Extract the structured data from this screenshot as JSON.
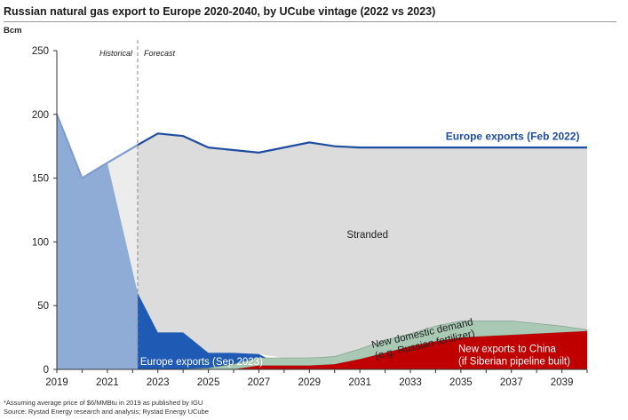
{
  "chart_data": {
    "type": "area",
    "title": "Russian natural gas export to Europe 2020-2040, by UCube vintage (2022 vs 2023)",
    "ylabel": "Bcm",
    "xlabel": "",
    "ylim": [
      0,
      250
    ],
    "yticks": [
      0,
      50,
      100,
      150,
      200,
      250
    ],
    "xlim": [
      2019,
      2040
    ],
    "xticks": [
      "2019",
      "2021",
      "2023",
      "2025",
      "2027",
      "2029",
      "2031",
      "2033",
      "2035",
      "2037",
      "2039"
    ],
    "forecast_start": 2022.2,
    "region_labels": {
      "historical": "Historical",
      "forecast": "Forecast"
    },
    "series": [
      {
        "name": "Europe exports (Feb 2022)",
        "color": "#1f4ea0",
        "x": [
          2019,
          2020,
          2021,
          2022.2,
          2023,
          2024,
          2025,
          2026,
          2027,
          2028,
          2029,
          2030,
          2031,
          2032,
          2033,
          2034,
          2035,
          2036,
          2037,
          2038,
          2039,
          2040
        ],
        "values": [
          200,
          150,
          162,
          176,
          185,
          183,
          174,
          172,
          170,
          174,
          178,
          175,
          174,
          174,
          174,
          174,
          174,
          174,
          174,
          174,
          174,
          174
        ]
      },
      {
        "name": "Europe exports (Sep 2023)",
        "color": "#1f5bb5",
        "historical_color": "#8eacd6",
        "x": [
          2019,
          2020,
          2021,
          2022.2,
          2023,
          2024,
          2025,
          2026,
          2027,
          2028,
          2029,
          2030,
          2031,
          2032,
          2033,
          2034,
          2035,
          2036,
          2037,
          2038,
          2039,
          2040
        ],
        "values": [
          200,
          150,
          162,
          60,
          29,
          29,
          13,
          13,
          12,
          2,
          2,
          1,
          1,
          0,
          0,
          0,
          0,
          0,
          0,
          0,
          0,
          0
        ]
      },
      {
        "name": "New exports to China (if Siberian pipeline built)",
        "color": "#c00000",
        "x": [
          2019,
          2020,
          2021,
          2022.2,
          2023,
          2024,
          2025,
          2026,
          2027,
          2028,
          2029,
          2030,
          2031,
          2032,
          2033,
          2034,
          2035,
          2036,
          2037,
          2038,
          2039,
          2040
        ],
        "values": [
          0,
          0,
          0,
          0,
          0,
          0,
          0,
          0,
          3,
          3,
          3,
          4,
          8,
          13,
          18,
          22,
          25,
          26,
          27,
          28,
          29,
          30
        ]
      },
      {
        "name": "New domestic demand (e.g. Russian fertilizer)",
        "color": "#a9c9b5",
        "x": [
          2019,
          2020,
          2021,
          2022.2,
          2023,
          2024,
          2025,
          2026,
          2027,
          2028,
          2029,
          2030,
          2031,
          2032,
          2033,
          2034,
          2035,
          2036,
          2037,
          2038,
          2039,
          2040
        ],
        "values": [
          0,
          0,
          0,
          0,
          0,
          0,
          1,
          4,
          6,
          6,
          6,
          6,
          8,
          10,
          10,
          12,
          13,
          12,
          11,
          8,
          5,
          1
        ]
      }
    ],
    "annotations": {
      "stranded": "Stranded",
      "feb2022": "Europe exports (Feb 2022)",
      "sep2023": "Europe exports (Sep 2023)",
      "domestic_line1": "New domestic demand",
      "domestic_line2": "(e.g. Russian fertilizer)",
      "china_line1": "New exports to China",
      "china_line2": "(if Siberian pipeline built)"
    },
    "footnote": "*Assuming average price of $6/MMBtu in 2019 as published by IGU",
    "source": "Source: Rystad Energy research and analysis; Rystad Energy UCube"
  }
}
